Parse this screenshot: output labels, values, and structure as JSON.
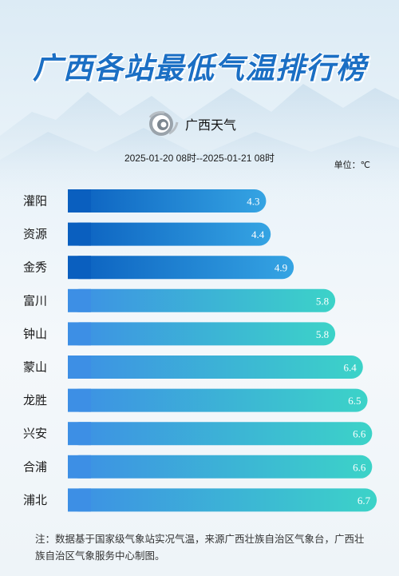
{
  "title": "广西各站最低气温排行榜",
  "brand": {
    "name": "广西天气"
  },
  "subtitle": "2025-01-20 08时--2025-01-21 08时",
  "unit_label": "单位：℃",
  "note": "注：数据基于国家级气象站实况气温，来源广西壮族自治区气象台，广西壮族自治区气象服务中心制图。",
  "colors": {
    "title": "#1b6fc4",
    "bar_dark_start": "#0a5fbf",
    "bar_dark_end": "#35a4e3",
    "bar_light_start": "#3d8fe5",
    "bar_light_end": "#3cd3c8"
  },
  "chart_data": {
    "type": "bar",
    "orientation": "horizontal",
    "categories": [
      "灌阳",
      "资源",
      "金秀",
      "富川",
      "钟山",
      "蒙山",
      "龙胜",
      "兴安",
      "合浦",
      "浦北"
    ],
    "values": [
      4.3,
      4.4,
      4.9,
      5.8,
      5.8,
      6.4,
      6.5,
      6.6,
      6.6,
      6.7
    ],
    "value_labels": [
      "4.3",
      "4.4",
      "4.9",
      "5.8",
      "5.8",
      "6.4",
      "6.5",
      "6.6",
      "6.6",
      "6.7"
    ],
    "xlim": [
      0,
      7.2
    ],
    "grid": false
  }
}
